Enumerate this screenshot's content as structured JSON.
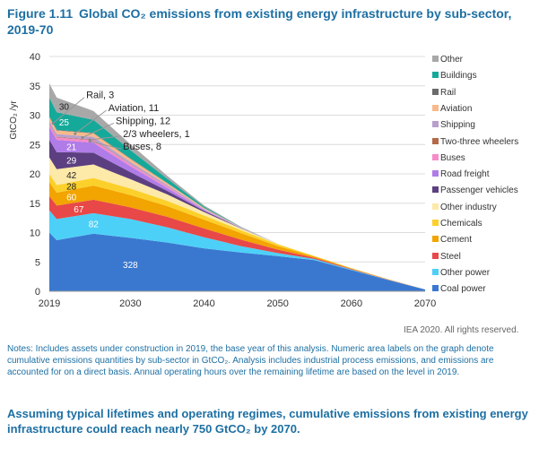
{
  "figure": {
    "number": "Figure 1.11",
    "title": "Global CO₂ emissions from existing energy infrastructure by sub-sector, 2019-70"
  },
  "credit": "IEA 2020. All rights reserved.",
  "notes": "Notes: Includes assets under construction in 2019, the base year of this analysis. Numeric area labels on the graph denote cumulative emissions quantities by sub-sector in GtCO₂. Analysis includes industrial process emissions, and emissions are accounted for on a direct basis. Annual operating hours over the remaining lifetime are based on the level in 2019.",
  "conclusion": "Assuming typical lifetimes and operating regimes, cumulative emissions from existing energy infrastructure could reach nearly 750 GtCO₂ by 2070.",
  "chart_data": {
    "type": "area",
    "stacked": true,
    "ylabel": "GtCO₂ /yr",
    "ylim": [
      0,
      40
    ],
    "yticks": [
      0,
      5,
      10,
      15,
      20,
      25,
      30,
      35,
      40
    ],
    "xlim": [
      2019,
      2070
    ],
    "xticks": [
      2019,
      2030,
      2040,
      2050,
      2060,
      2070
    ],
    "grid": "horizontal",
    "legend_placement": "right",
    "x": [
      2019,
      2020,
      2025,
      2030,
      2035,
      2040,
      2045,
      2050,
      2055,
      2060,
      2065,
      2070
    ],
    "series": [
      {
        "name": "Coal power",
        "color": "#3a78d0",
        "label": "328",
        "values": [
          10,
          8.7,
          9.8,
          9.1,
          8.3,
          7.3,
          6.6,
          6,
          5.3,
          3.6,
          1.9,
          0.3
        ]
      },
      {
        "name": "Other power",
        "color": "#4dd0f7",
        "label": "82",
        "values": [
          3.8,
          3.6,
          3.5,
          3.2,
          2.6,
          1.9,
          1.1,
          0.5,
          0.2,
          0.1,
          0.05,
          0
        ]
      },
      {
        "name": "Steel",
        "color": "#e84848",
        "label": "67",
        "values": [
          2.4,
          2.3,
          2.3,
          2,
          1.8,
          1.5,
          1.1,
          0.6,
          0.2,
          0.1,
          0.05,
          0
        ]
      },
      {
        "name": "Cement",
        "color": "#f2a400",
        "label": "60",
        "values": [
          2.4,
          2.2,
          2.4,
          2.1,
          1.8,
          1.5,
          1.1,
          0.6,
          0.2,
          0.1,
          0.05,
          0
        ]
      },
      {
        "name": "Chemicals",
        "color": "#fcd02a",
        "label": "28",
        "values": [
          1.4,
          1.3,
          1.3,
          1.1,
          0.9,
          0.7,
          0.5,
          0.3,
          0.1,
          0.05,
          0,
          0
        ]
      },
      {
        "name": "Other industry",
        "color": "#fde9a8",
        "label": "42",
        "values": [
          2.8,
          2.7,
          2.3,
          1.6,
          1.1,
          0.6,
          0.3,
          0.1,
          0,
          0,
          0,
          0
        ]
      },
      {
        "name": "Passenger vehicles",
        "color": "#5c3f80",
        "label": "29",
        "values": [
          3,
          2.9,
          2,
          1.2,
          0.6,
          0.2,
          0.05,
          0,
          0,
          0,
          0,
          0
        ]
      },
      {
        "name": "Road freight",
        "color": "#b07ce8",
        "label": "21",
        "values": [
          2.2,
          2.1,
          1.7,
          1,
          0.5,
          0.15,
          0.05,
          0,
          0,
          0,
          0,
          0
        ]
      },
      {
        "name": "Buses",
        "color": "#f78bc8",
        "label": "Buses, 8",
        "values": [
          0.4,
          0.4,
          0.4,
          0.3,
          0.2,
          0.05,
          0,
          0,
          0,
          0,
          0,
          0
        ]
      },
      {
        "name": "Two-three wheelers",
        "color": "#b5694a",
        "label": "2/3 wheelers, 1",
        "values": [
          0.1,
          0.1,
          0.1,
          0.05,
          0.02,
          0,
          0,
          0,
          0,
          0,
          0,
          0
        ]
      },
      {
        "name": "Shipping",
        "color": "#b9a0cc",
        "label": "Shipping, 12",
        "values": [
          0.5,
          0.5,
          0.5,
          0.4,
          0.3,
          0.15,
          0.05,
          0,
          0,
          0,
          0,
          0
        ]
      },
      {
        "name": "Aviation",
        "color": "#f7b98a",
        "label": "Aviation, 11",
        "values": [
          0.7,
          0.6,
          0.6,
          0.5,
          0.3,
          0.15,
          0.05,
          0,
          0,
          0,
          0,
          0
        ]
      },
      {
        "name": "Rail",
        "color": "#6b6b6b",
        "label": "Rail, 3",
        "values": [
          0.1,
          0.1,
          0.1,
          0.1,
          0.05,
          0.02,
          0,
          0,
          0,
          0,
          0,
          0
        ]
      },
      {
        "name": "Buildings",
        "color": "#15a99a",
        "label": "25",
        "values": [
          3.2,
          3,
          2.2,
          1.4,
          0.7,
          0.2,
          0.05,
          0,
          0,
          0,
          0,
          0
        ]
      },
      {
        "name": "Other",
        "color": "#a8a8a8",
        "label": "30",
        "values": [
          2.4,
          2.5,
          1.5,
          1,
          0.5,
          0.2,
          0.05,
          0,
          0,
          0,
          0,
          0
        ]
      }
    ]
  }
}
